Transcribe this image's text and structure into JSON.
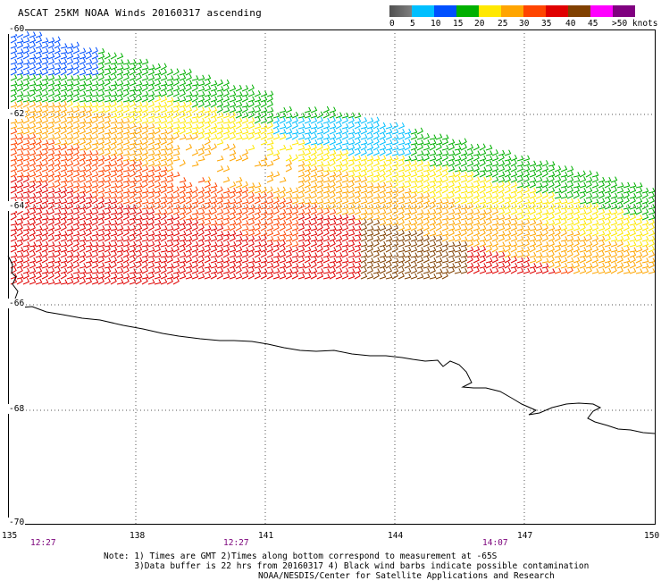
{
  "title": "ASCAT 25KM NOAA Winds 20160317 ascending",
  "legend": {
    "labels": [
      "0",
      "5",
      "10",
      "15",
      "20",
      "25",
      "30",
      "35",
      "40",
      "45",
      ">50 knots"
    ],
    "colors": [
      "#505050",
      "#7f7f7f",
      "#00bfff",
      "#0050ff",
      "#00b000",
      "#ffe800",
      "#ffa500",
      "#ff4500",
      "#e00000",
      "#804000",
      "#ff00ff",
      "#800080"
    ]
  },
  "axes": {
    "lat_labels": [
      "-60",
      "-62",
      "-64",
      "-66",
      "-68",
      "-70"
    ],
    "lon_labels": [
      "135",
      "138",
      "141",
      "144",
      "147",
      "150"
    ]
  },
  "times": [
    "12:27",
    "12:27",
    "14:07"
  ],
  "note": {
    "line1": "Note: 1) Times are GMT 2)Times along bottom correspond to measurement at -65S",
    "line2": "      3)Data buffer is 22 hrs from 20160317 4) Black wind barbs indicate possible contamination",
    "credit": "NOAA/NESDIS/Center for Satellite Applications and Research"
  },
  "map": {
    "lat_range": [
      -70,
      -60
    ],
    "lon_range": [
      135,
      150
    ],
    "gridlines": true,
    "coastline_color": "#000000"
  }
}
